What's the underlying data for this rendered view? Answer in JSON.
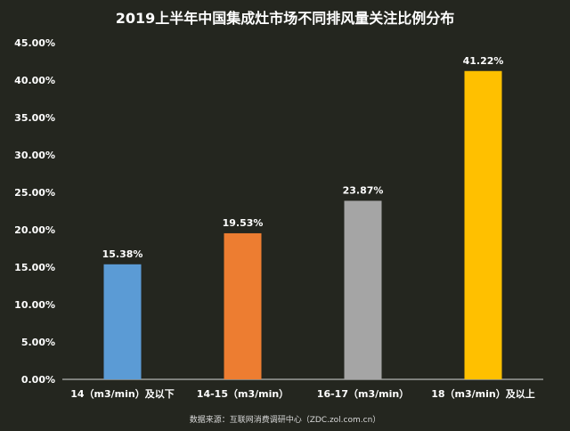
{
  "chart_data": {
    "type": "bar",
    "title": "2019上半年中国集成灶市场不同排风量关注比例分布",
    "categories": [
      "14（m3/min）及以下",
      "14-15（m3/min）",
      "16-17（m3/min）",
      "18（m3/min）及以上"
    ],
    "values": [
      15.38,
      19.53,
      23.87,
      41.22
    ],
    "data_labels": [
      "15.38%",
      "19.53%",
      "23.87%",
      "41.22%"
    ],
    "colors": [
      "#5b9bd5",
      "#ed7d31",
      "#a5a5a5",
      "#ffc000"
    ],
    "ylim": [
      0,
      45
    ],
    "yticks": [
      0,
      5,
      10,
      15,
      20,
      25,
      30,
      35,
      40,
      45
    ],
    "ytick_labels": [
      "0.00%",
      "5.00%",
      "10.00%",
      "15.00%",
      "20.00%",
      "25.00%",
      "30.00%",
      "35.00%",
      "40.00%",
      "45.00%"
    ],
    "xlabel": "",
    "ylabel": "",
    "grid": false,
    "source": "数据来源：互联网消费调研中心（ZDC.zol.com.cn）"
  }
}
